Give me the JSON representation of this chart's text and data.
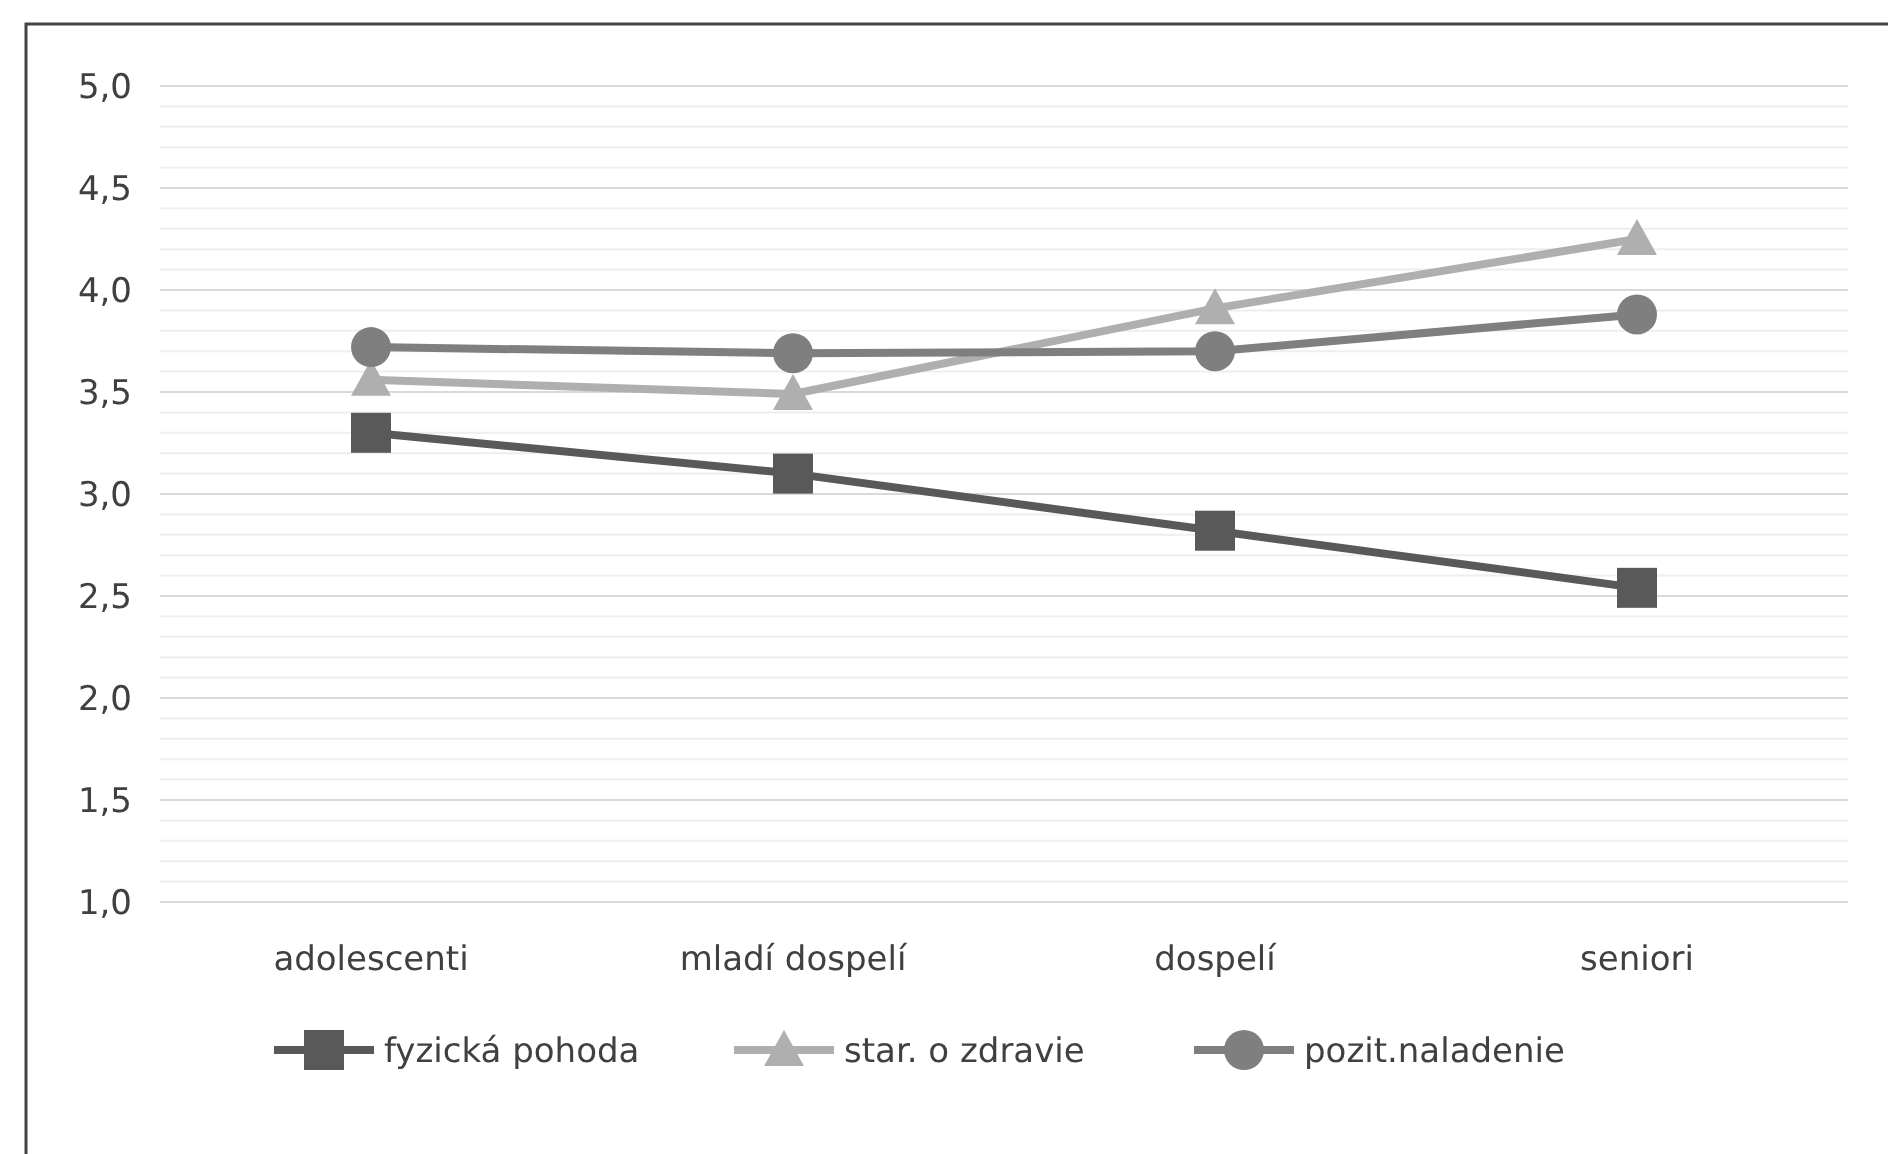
{
  "chart_data": {
    "type": "line",
    "categories": [
      "adolescenti",
      "mladí dospelí",
      "dospelí",
      "seniori"
    ],
    "series": [
      {
        "name": "fyzická pohoda",
        "color": "#595959",
        "marker": "square",
        "values": [
          3.3,
          3.1,
          2.82,
          2.54
        ]
      },
      {
        "name": "star. o zdravie",
        "color": "#afafaf",
        "marker": "triangle",
        "values": [
          3.56,
          3.49,
          3.91,
          4.25
        ]
      },
      {
        "name": "pozit.naladenie",
        "color": "#7f7f7f",
        "marker": "circle",
        "values": [
          3.72,
          3.69,
          3.7,
          3.88
        ]
      }
    ],
    "ylim": [
      1,
      5
    ],
    "yticks": [
      {
        "value": 1,
        "label": "1,0"
      },
      {
        "value": 1.1,
        "label": null
      },
      {
        "value": 1.2,
        "label": null
      },
      {
        "value": 1.3,
        "label": null
      },
      {
        "value": 1.4,
        "label": null
      },
      {
        "value": 1.5,
        "label": "1,5"
      },
      {
        "value": 1.6,
        "label": null
      },
      {
        "value": 1.7,
        "label": null
      },
      {
        "value": 1.8,
        "label": null
      },
      {
        "value": 1.9,
        "label": null
      },
      {
        "value": 2,
        "label": "2,0"
      },
      {
        "value": 2.1,
        "label": null
      },
      {
        "value": 2.2,
        "label": null
      },
      {
        "value": 2.3,
        "label": null
      },
      {
        "value": 2.4,
        "label": null
      },
      {
        "value": 2.5,
        "label": "2,5"
      },
      {
        "value": 2.6,
        "label": null
      },
      {
        "value": 2.7,
        "label": null
      },
      {
        "value": 2.8,
        "label": null
      },
      {
        "value": 2.9,
        "label": null
      },
      {
        "value": 3,
        "label": "3,0"
      },
      {
        "value": 3.1,
        "label": null
      },
      {
        "value": 3.2,
        "label": null
      },
      {
        "value": 3.3,
        "label": null
      },
      {
        "value": 3.4,
        "label": null
      },
      {
        "value": 3.5,
        "label": "3,5"
      },
      {
        "value": 3.6,
        "label": null
      },
      {
        "value": 3.7,
        "label": null
      },
      {
        "value": 3.8,
        "label": null
      },
      {
        "value": 3.9,
        "label": null
      },
      {
        "value": 4,
        "label": "4,0"
      },
      {
        "value": 4.1,
        "label": null
      },
      {
        "value": 4.2,
        "label": null
      },
      {
        "value": 4.3,
        "label": null
      },
      {
        "value": 4.4,
        "label": null
      },
      {
        "value": 4.5,
        "label": "4,5"
      },
      {
        "value": 4.6,
        "label": null
      },
      {
        "value": 4.7,
        "label": null
      },
      {
        "value": 4.8,
        "label": null
      },
      {
        "value": 4.9,
        "label": null
      },
      {
        "value": 5,
        "label": "5,0"
      }
    ],
    "grid": true,
    "legend": "bottom",
    "line_style": "solid"
  }
}
